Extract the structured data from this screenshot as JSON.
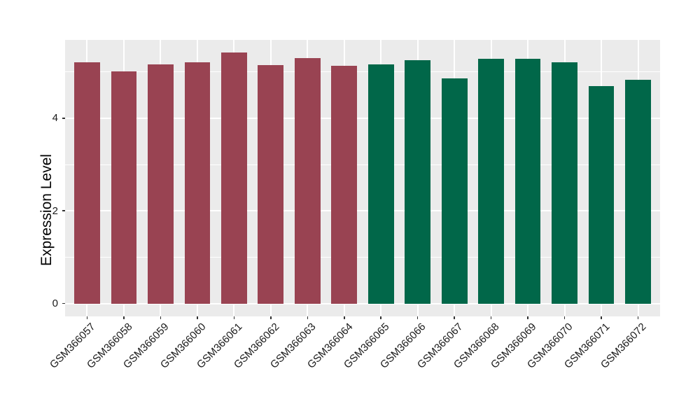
{
  "figure": {
    "background": "#FFFFFF"
  },
  "chart_data": {
    "type": "bar",
    "title": "",
    "xlabel": "",
    "ylabel": "Expression Level",
    "categories": [
      "GSM366057",
      "GSM366058",
      "GSM366059",
      "GSM366060",
      "GSM366061",
      "GSM366062",
      "GSM366063",
      "GSM366064",
      "GSM366065",
      "GSM366066",
      "GSM366067",
      "GSM366068",
      "GSM366069",
      "GSM366070",
      "GSM366071",
      "GSM366072"
    ],
    "values": [
      5.2,
      5.01,
      5.16,
      5.2,
      5.42,
      5.14,
      5.3,
      5.13,
      5.16,
      5.25,
      4.86,
      5.28,
      5.28,
      5.21,
      4.7,
      4.83
    ],
    "bar_colors": [
      "#994352",
      "#994352",
      "#994352",
      "#994352",
      "#994352",
      "#994352",
      "#994352",
      "#994352",
      "#016749",
      "#016749",
      "#016749",
      "#016749",
      "#016749",
      "#016749",
      "#016749",
      "#016749"
    ],
    "group_colors": {
      "samples_057_064": "#994352",
      "samples_065_072": "#016749"
    },
    "yticks": [
      0,
      2,
      4
    ],
    "y_minor_gridlines": [
      1,
      3,
      5
    ],
    "ylim": [
      -0.27,
      5.69
    ],
    "grid": true,
    "legend": "none",
    "x_tick_rotation_deg": 45,
    "panel_background": "#EBEBEB",
    "gridline_color": "#FFFFFF",
    "tick_color": "#333333",
    "axis_text_color": "#1A1A1A"
  }
}
